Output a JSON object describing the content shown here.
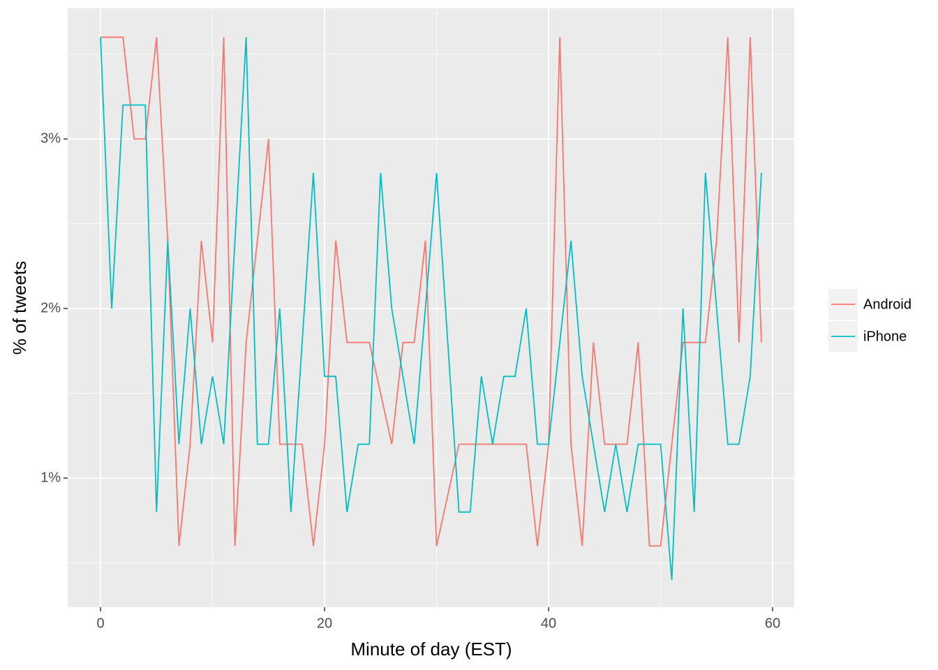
{
  "chart_data": {
    "type": "line",
    "x_label": "Minute of day (EST)",
    "y_label": "% of tweets",
    "x": [
      0,
      1,
      2,
      3,
      4,
      5,
      6,
      7,
      8,
      9,
      10,
      11,
      12,
      13,
      14,
      15,
      16,
      17,
      18,
      19,
      20,
      21,
      22,
      23,
      24,
      25,
      26,
      27,
      28,
      29,
      30,
      31,
      32,
      33,
      34,
      35,
      36,
      37,
      38,
      39,
      40,
      41,
      42,
      43,
      44,
      45,
      46,
      47,
      48,
      49,
      50,
      51,
      52,
      53,
      54,
      55,
      56,
      57,
      58,
      59
    ],
    "series": [
      {
        "name": "Android",
        "color": "#F8766D",
        "values": [
          3.6,
          3.6,
          3.6,
          3.0,
          3.0,
          3.6,
          2.4,
          0.6,
          1.2,
          2.4,
          1.8,
          3.6,
          0.6,
          1.8,
          2.4,
          3.0,
          1.2,
          1.2,
          1.2,
          0.6,
          1.2,
          2.4,
          1.8,
          1.8,
          1.8,
          1.5,
          1.2,
          1.8,
          1.8,
          2.4,
          0.6,
          0.9,
          1.2,
          1.2,
          1.2,
          1.2,
          1.2,
          1.2,
          1.2,
          0.6,
          1.2,
          3.6,
          1.2,
          0.6,
          1.8,
          1.2,
          1.2,
          1.2,
          1.8,
          0.6,
          0.6,
          1.2,
          1.8,
          1.8,
          1.8,
          2.4,
          3.6,
          1.8,
          3.6,
          1.8
        ]
      },
      {
        "name": "iPhone",
        "color": "#00BFC4",
        "values": [
          3.6,
          2.0,
          3.2,
          3.2,
          3.2,
          0.8,
          2.4,
          1.2,
          2.0,
          1.2,
          1.6,
          1.2,
          2.4,
          3.6,
          1.2,
          1.2,
          2.0,
          0.8,
          1.8,
          2.8,
          1.6,
          1.6,
          0.8,
          1.2,
          1.2,
          2.8,
          2.0,
          1.6,
          1.2,
          2.0,
          2.8,
          1.8,
          0.8,
          0.8,
          1.6,
          1.2,
          1.6,
          1.6,
          2.0,
          1.2,
          1.2,
          1.8,
          2.4,
          1.6,
          1.2,
          0.8,
          1.2,
          0.8,
          1.2,
          1.2,
          1.2,
          0.4,
          2.0,
          0.8,
          2.8,
          2.0,
          1.2,
          1.2,
          1.6,
          2.8
        ]
      }
    ],
    "xlim": [
      -2.93,
      61.93
    ],
    "ylim": [
      0.239,
      3.77
    ],
    "xticks": [
      0,
      20,
      40,
      60
    ],
    "yticks": [
      {
        "value": 1,
        "label": "1%"
      },
      {
        "value": 2,
        "label": "2%"
      },
      {
        "value": 3,
        "label": "3%"
      }
    ],
    "x_minor_grid": [
      10,
      30,
      50
    ],
    "y_minor_grid": [
      0.5,
      1.5,
      2.5,
      3.5
    ],
    "grid": true,
    "legend": "right"
  }
}
